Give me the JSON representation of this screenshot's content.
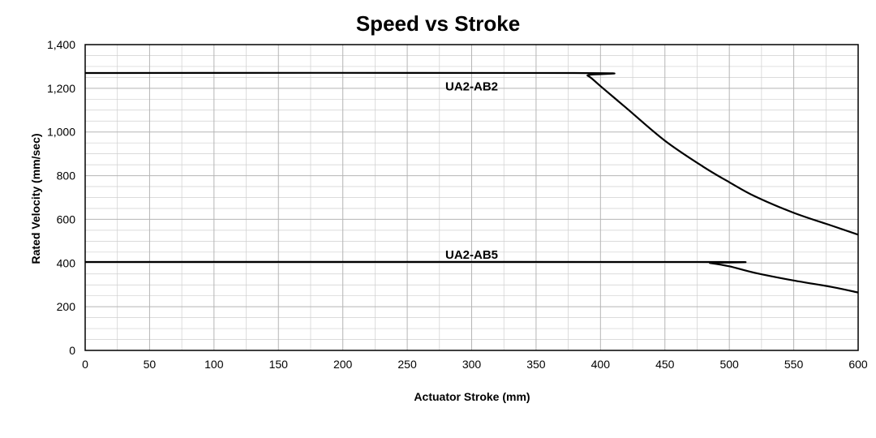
{
  "chart_data": {
    "type": "line",
    "title": "Speed vs Stroke",
    "xlabel": "Actuator Stroke (mm)",
    "ylabel": "Rated Velocity (mm/sec)",
    "xlim": [
      0,
      600
    ],
    "ylim": [
      0,
      1400
    ],
    "x_ticks": [
      0,
      50,
      100,
      150,
      200,
      250,
      300,
      350,
      400,
      450,
      500,
      550,
      600
    ],
    "y_ticks": [
      0,
      200,
      400,
      600,
      800,
      1000,
      1200,
      1400
    ],
    "x_tick_labels": [
      "0",
      "50",
      "100",
      "150",
      "200",
      "250",
      "300",
      "350",
      "400",
      "450",
      "500",
      "550",
      "600"
    ],
    "y_tick_labels": [
      "0",
      "200",
      "400",
      "600",
      "800",
      "1,000",
      "1,200",
      "1,400"
    ],
    "grid": true,
    "legend": "none",
    "series": [
      {
        "name": "UA2-AB2",
        "label_at": [
          300,
          1190
        ],
        "x": [
          0,
          380,
          390,
          400,
          420,
          450,
          480,
          500,
          520,
          550,
          580,
          600
        ],
        "y": [
          1270,
          1270,
          1258,
          1210,
          1110,
          960,
          840,
          770,
          705,
          630,
          570,
          530
        ]
      },
      {
        "name": "UA2-AB5",
        "label_at": [
          300,
          420
        ],
        "x": [
          0,
          475,
          485,
          500,
          520,
          550,
          580,
          600
        ],
        "y": [
          405,
          405,
          400,
          385,
          355,
          320,
          290,
          265
        ]
      }
    ]
  }
}
